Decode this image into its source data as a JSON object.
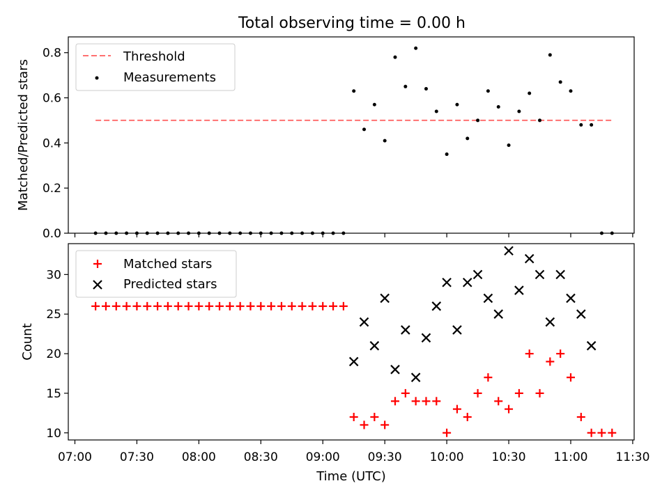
{
  "figure": {
    "title": "Total observing time = 0.00 h"
  },
  "chart_data": [
    {
      "type": "scatter",
      "ylabel": "Matched/Predicted stars",
      "xlabel": "",
      "xlim": [
        "07:00",
        "11:30"
      ],
      "ylim": [
        0,
        0.87
      ],
      "yticks": [
        0.0,
        0.2,
        0.4,
        0.6,
        0.8
      ],
      "ytick_labels": [
        "0.0",
        "0.2",
        "0.4",
        "0.6",
        "0.8"
      ],
      "grid": false,
      "legend": "top-left",
      "threshold": {
        "name": "Threshold",
        "value": 0.5,
        "x_start": "07:10",
        "x_end": "11:20",
        "color": "#ff7070",
        "style": "dashed"
      },
      "series": [
        {
          "name": "Measurements",
          "color": "#000000",
          "marker": "dot",
          "x": [
            "07:10",
            "07:15",
            "07:20",
            "07:25",
            "07:30",
            "07:35",
            "07:40",
            "07:45",
            "07:50",
            "07:55",
            "08:00",
            "08:05",
            "08:10",
            "08:15",
            "08:20",
            "08:25",
            "08:30",
            "08:35",
            "08:40",
            "08:45",
            "08:50",
            "08:55",
            "09:00",
            "09:05",
            "09:10",
            "09:15",
            "09:20",
            "09:25",
            "09:30",
            "09:35",
            "09:40",
            "09:45",
            "09:50",
            "09:55",
            "10:00",
            "10:05",
            "10:10",
            "10:15",
            "10:20",
            "10:25",
            "10:30",
            "10:35",
            "10:40",
            "10:45",
            "10:50",
            "10:55",
            "11:00",
            "11:05",
            "11:10",
            "11:15",
            "11:20"
          ],
          "y": [
            0,
            0,
            0,
            0,
            0,
            0,
            0,
            0,
            0,
            0,
            0,
            0,
            0,
            0,
            0,
            0,
            0,
            0,
            0,
            0,
            0,
            0,
            0,
            0,
            0,
            0.63,
            0.46,
            0.57,
            0.41,
            0.78,
            0.65,
            0.82,
            0.64,
            0.54,
            0.35,
            0.57,
            0.42,
            0.5,
            0.63,
            0.56,
            0.39,
            0.54,
            0.62,
            0.5,
            0.79,
            0.67,
            0.63,
            0.48,
            0.48,
            0.0,
            0.0
          ]
        }
      ]
    },
    {
      "type": "scatter",
      "ylabel": "Count",
      "xlabel": "Time (UTC)",
      "xlim": [
        "07:00",
        "11:30"
      ],
      "ylim": [
        9.1,
        33.9
      ],
      "xticks": [
        "07:00",
        "07:30",
        "08:00",
        "08:30",
        "09:00",
        "09:30",
        "10:00",
        "10:30",
        "11:00",
        "11:30"
      ],
      "yticks": [
        10,
        15,
        20,
        25,
        30
      ],
      "ytick_labels": [
        "10",
        "15",
        "20",
        "25",
        "30"
      ],
      "grid": false,
      "legend": "top-left",
      "series": [
        {
          "name": "Matched stars",
          "color": "#ff0000",
          "marker": "plus",
          "x": [
            "07:10",
            "07:15",
            "07:20",
            "07:25",
            "07:30",
            "07:35",
            "07:40",
            "07:45",
            "07:50",
            "07:55",
            "08:00",
            "08:05",
            "08:10",
            "08:15",
            "08:20",
            "08:25",
            "08:30",
            "08:35",
            "08:40",
            "08:45",
            "08:50",
            "08:55",
            "09:00",
            "09:05",
            "09:10",
            "09:15",
            "09:20",
            "09:25",
            "09:30",
            "09:35",
            "09:40",
            "09:45",
            "09:50",
            "09:55",
            "10:00",
            "10:05",
            "10:10",
            "10:15",
            "10:20",
            "10:25",
            "10:30",
            "10:35",
            "10:40",
            "10:45",
            "10:50",
            "10:55",
            "11:00",
            "11:05",
            "11:10",
            "11:15",
            "11:20"
          ],
          "y": [
            26,
            26,
            26,
            26,
            26,
            26,
            26,
            26,
            26,
            26,
            26,
            26,
            26,
            26,
            26,
            26,
            26,
            26,
            26,
            26,
            26,
            26,
            26,
            26,
            26,
            12,
            11,
            12,
            11,
            14,
            15,
            14,
            14,
            14,
            10,
            13,
            12,
            15,
            17,
            14,
            13,
            15,
            20,
            15,
            19,
            20,
            17,
            12,
            10,
            10,
            10
          ]
        },
        {
          "name": "Predicted stars",
          "color": "#000000",
          "marker": "x",
          "x": [
            "09:15",
            "09:20",
            "09:25",
            "09:30",
            "09:35",
            "09:40",
            "09:45",
            "09:50",
            "09:55",
            "10:00",
            "10:05",
            "10:10",
            "10:15",
            "10:20",
            "10:25",
            "10:30",
            "10:35",
            "10:40",
            "10:45",
            "10:50",
            "10:55",
            "11:00",
            "11:05",
            "11:10"
          ],
          "y": [
            19,
            24,
            21,
            27,
            18,
            23,
            17,
            22,
            26,
            29,
            23,
            29,
            30,
            27,
            25,
            33,
            28,
            32,
            30,
            24,
            30,
            27,
            25,
            21
          ]
        }
      ]
    }
  ]
}
